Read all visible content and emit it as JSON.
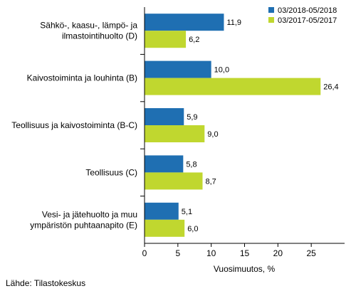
{
  "chart_data": {
    "type": "bar",
    "orientation": "horizontal",
    "categories": [
      "Sähkö-, kaasu-, lämpö- ja\nilmastointihuolto (D)",
      "Kaivostoiminta ja louhinta (B)",
      "Teollisuus ja kaivostoiminta (B-C)",
      "Teollisuus (C)",
      "Vesi- ja jätehuolto ja muu\nympäristön puhtaanapito (E)"
    ],
    "series": [
      {
        "name": "03/2018-05/2018",
        "color": "#1f6fb2",
        "values": [
          11.9,
          10.0,
          5.9,
          5.8,
          5.1
        ],
        "labels": [
          "11,9",
          "10,0",
          "5,9",
          "5,8",
          "5,1"
        ]
      },
      {
        "name": "03/2017-05/2017",
        "color": "#c0d72f",
        "values": [
          6.2,
          26.4,
          9.0,
          8.7,
          6.0
        ],
        "labels": [
          "6,2",
          "26,4",
          "9,0",
          "8,7",
          "6,0"
        ]
      }
    ],
    "xlabel": "Vuosimuutos, %",
    "xlim": [
      0,
      30
    ],
    "xticks": [
      0,
      5,
      10,
      15,
      20,
      25
    ],
    "legend_position": "top-right"
  },
  "source": "Lähde: Tilastokeskus"
}
